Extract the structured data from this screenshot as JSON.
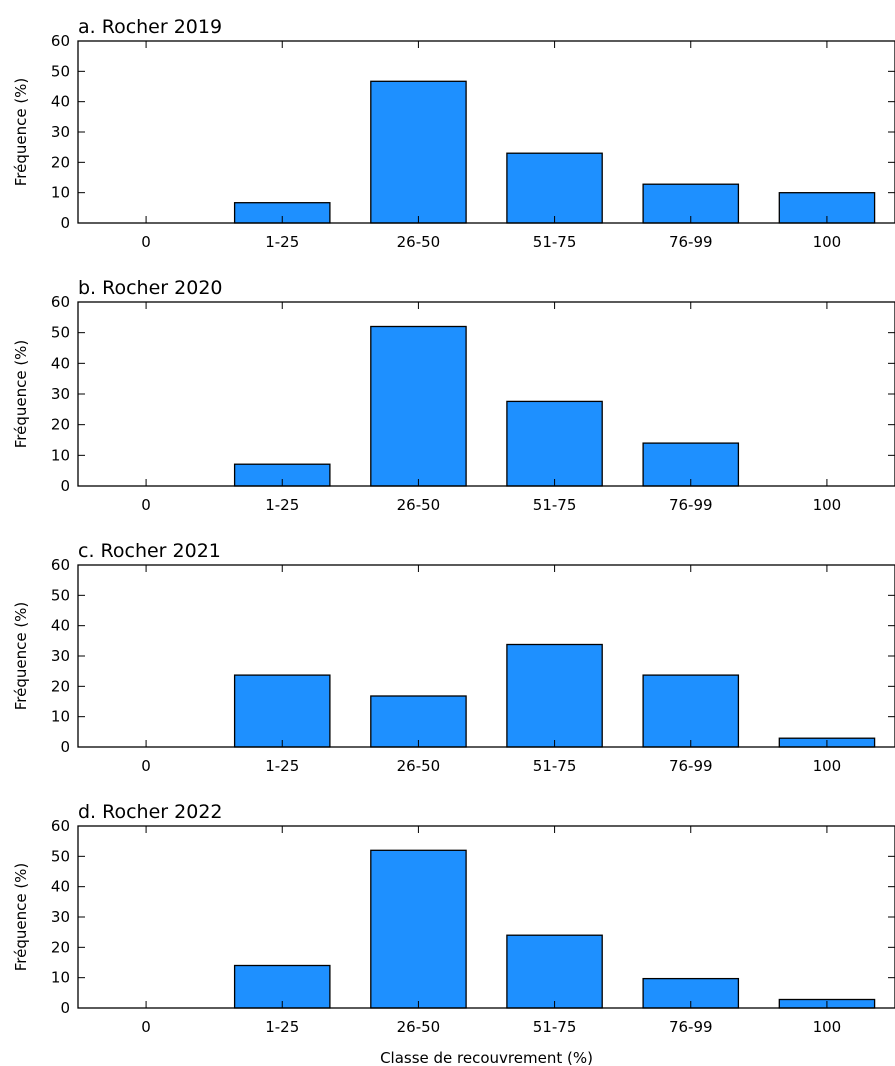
{
  "chart_data": [
    {
      "type": "bar",
      "title": "a. Rocher 2019",
      "ylabel": "Fréquence (%)",
      "xlabel": "",
      "categories": [
        "0",
        "1-25",
        "26-50",
        "51-75",
        "76-99",
        "100"
      ],
      "values": [
        0,
        6.7,
        46.7,
        23,
        12.8,
        10
      ],
      "ylim": [
        0,
        60
      ],
      "yticks": [
        0,
        10,
        20,
        30,
        40,
        50,
        60
      ],
      "color": "#1e90ff"
    },
    {
      "type": "bar",
      "title": "b. Rocher 2020",
      "ylabel": "Fréquence (%)",
      "xlabel": "",
      "categories": [
        "0",
        "1-25",
        "26-50",
        "51-75",
        "76-99",
        "100"
      ],
      "values": [
        0,
        7.1,
        52,
        27.6,
        14,
        0
      ],
      "ylim": [
        0,
        60
      ],
      "yticks": [
        0,
        10,
        20,
        30,
        40,
        50,
        60
      ],
      "color": "#1e90ff"
    },
    {
      "type": "bar",
      "title": "c. Rocher 2021",
      "ylabel": "Fréquence (%)",
      "xlabel": "",
      "categories": [
        "0",
        "1-25",
        "26-50",
        "51-75",
        "76-99",
        "100"
      ],
      "values": [
        0,
        23.7,
        16.8,
        33.8,
        23.7,
        2.9
      ],
      "ylim": [
        0,
        60
      ],
      "yticks": [
        0,
        10,
        20,
        30,
        40,
        50,
        60
      ],
      "color": "#1e90ff"
    },
    {
      "type": "bar",
      "title": "d. Rocher 2022",
      "ylabel": "Fréquence (%)",
      "xlabel": "Classe de recouvrement (%)",
      "categories": [
        "0",
        "1-25",
        "26-50",
        "51-75",
        "76-99",
        "100"
      ],
      "values": [
        0,
        14,
        52,
        24,
        9.7,
        2.8
      ],
      "ylim": [
        0,
        60
      ],
      "yticks": [
        0,
        10,
        20,
        30,
        40,
        50,
        60
      ],
      "color": "#1e90ff"
    }
  ]
}
